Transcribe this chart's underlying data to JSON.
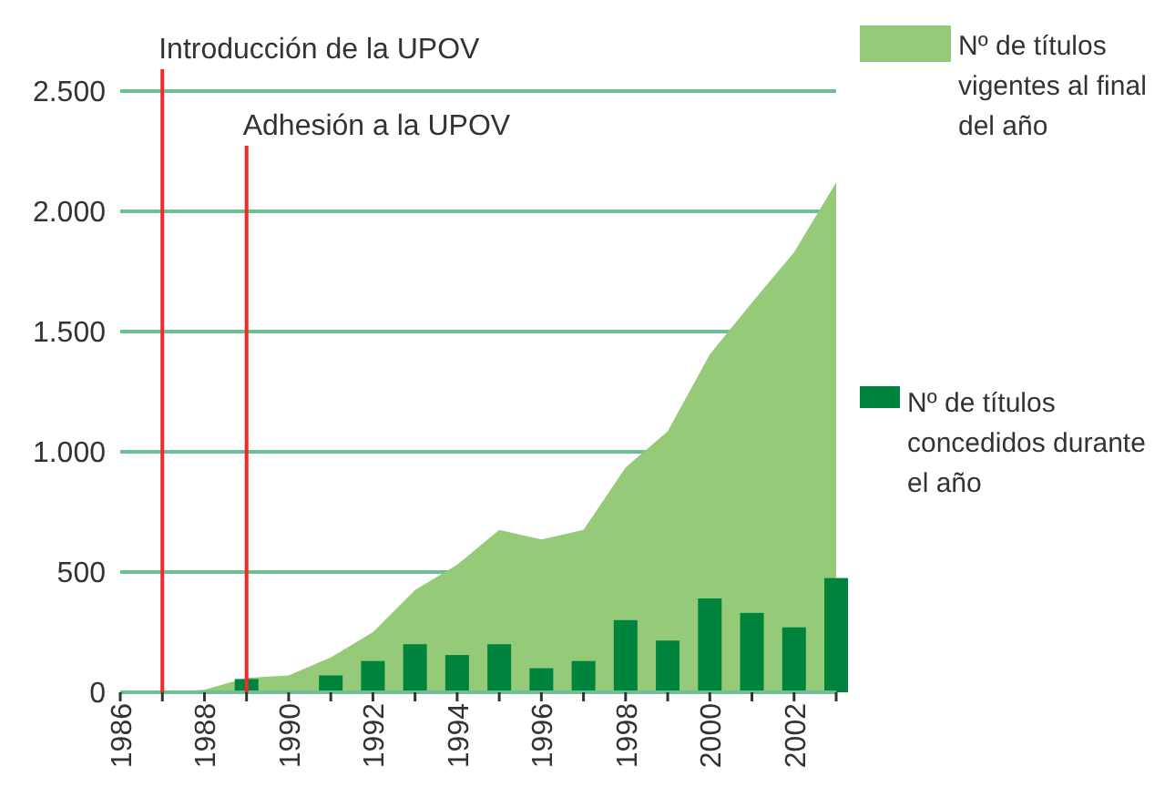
{
  "chart_data": {
    "type": "area",
    "x": [
      1986,
      1987,
      1988,
      1989,
      1990,
      1991,
      1992,
      1993,
      1994,
      1995,
      1996,
      1997,
      1998,
      1999,
      2000,
      2001,
      2002,
      2003
    ],
    "series": [
      {
        "name": "Nº de títulos vigentes al final del año",
        "color": "#95cb78",
        "values": [
          0,
          0,
          10,
          60,
          70,
          145,
          250,
          425,
          530,
          675,
          635,
          675,
          935,
          1085,
          1405,
          1620,
          1830,
          2120
        ]
      },
      {
        "name": "Nº de títulos concedidos durante el año",
        "type": "bar",
        "color": "#00843d",
        "values": [
          null,
          null,
          null,
          55,
          null,
          70,
          130,
          200,
          155,
          200,
          100,
          130,
          300,
          215,
          390,
          330,
          270,
          475
        ]
      }
    ],
    "xlim": [
      1986,
      2003
    ],
    "xticks": [
      1986,
      {
        "value": 1987,
        "label": null
      },
      1988,
      {
        "value": 1989,
        "label": null
      },
      1990,
      {
        "value": 1991,
        "label": null
      },
      1992,
      {
        "value": 1993,
        "label": null
      },
      1994,
      {
        "value": 1995,
        "label": null
      },
      1996,
      {
        "value": 1997,
        "label": null
      },
      1998,
      {
        "value": 1999,
        "label": null
      },
      2000,
      {
        "value": 2001,
        "label": null
      },
      2002,
      {
        "value": 2003,
        "label": null
      }
    ],
    "ylim": [
      0,
      2500
    ],
    "yticks": [
      {
        "value": 0,
        "label": "0"
      },
      {
        "value": 500,
        "label": "500"
      },
      {
        "value": 1000,
        "label": "1.000"
      },
      {
        "value": 1500,
        "label": "1.500"
      },
      {
        "value": 2000,
        "label": "2.000"
      },
      {
        "value": 2500,
        "label": "2.500"
      }
    ],
    "grid": "y",
    "legend": "right",
    "ref_lines": [
      {
        "axis": "x",
        "value": 1987,
        "label": "Introducción de la UPOV",
        "color": "#ee2a2a"
      },
      {
        "axis": "x",
        "value": 1989,
        "label": "Adhesión a la UPOV",
        "color": "#ee2a2a"
      }
    ]
  }
}
